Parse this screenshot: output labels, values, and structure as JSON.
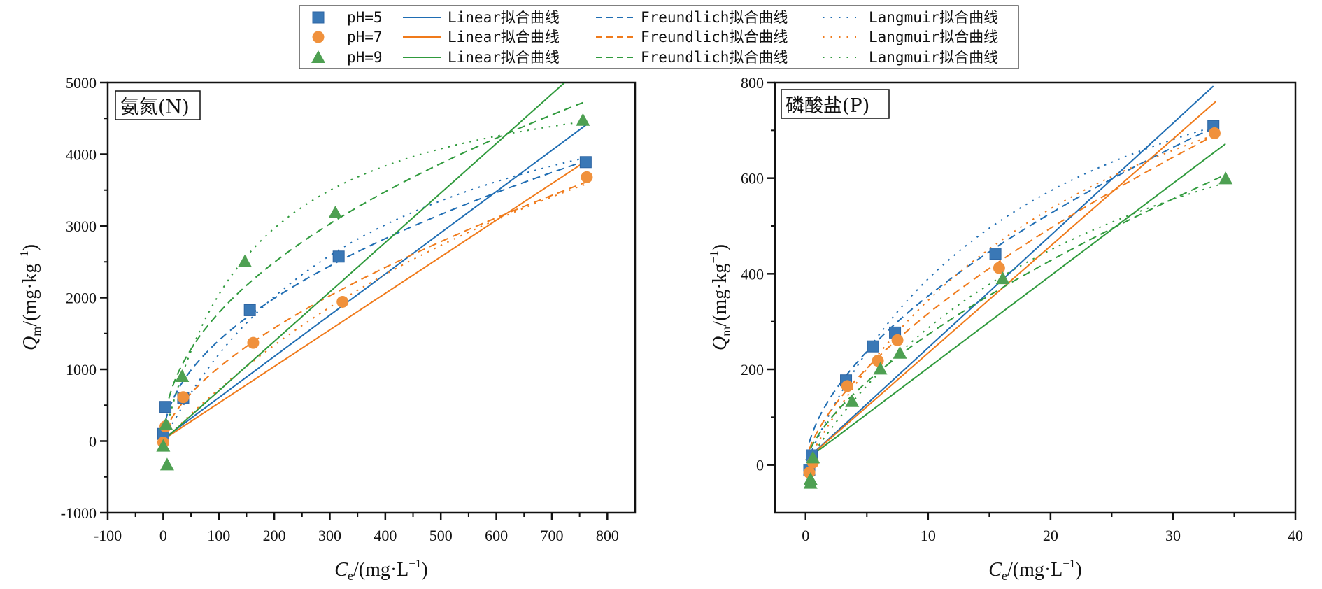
{
  "legend": {
    "placement": "top-center",
    "rows": [
      {
        "marker": "square",
        "label": "pH=5",
        "color": "#3a78b6",
        "line_color": "#1f6db3",
        "linear": "Linear拟合曲线",
        "freundlich": "Freundlich拟合曲线",
        "langmuir": "Langmuir拟合曲线"
      },
      {
        "marker": "circle",
        "label": "pH=7",
        "color": "#f0913c",
        "line_color": "#f07a1a",
        "linear": "Linear拟合曲线",
        "freundlich": "Freundlich拟合曲线",
        "langmuir": "Langmuir拟合曲线"
      },
      {
        "marker": "triangle",
        "label": "pH=9",
        "color": "#4ea052",
        "line_color": "#2f9a3c",
        "linear": "Linear拟合曲线",
        "freundlich": "Freundlich拟合曲线",
        "langmuir": "Langmuir拟合曲线"
      }
    ]
  },
  "chart_data": [
    {
      "type": "scatter",
      "title": "氨氮(N)",
      "xlabel_main": "C",
      "xlabel_sub": "e",
      "xlabel_unit": "/(mg·L",
      "xlabel_sup": "−1",
      "xlabel_close": ")",
      "ylabel_main": "Q",
      "ylabel_sub": "m",
      "ylabel_unit": "/(mg·kg",
      "ylabel_sup": "−1",
      "ylabel_close": ")",
      "xlim": [
        -100,
        850
      ],
      "ylim": [
        -1000,
        5000
      ],
      "xticks": [
        -100,
        0,
        100,
        200,
        300,
        400,
        500,
        600,
        700,
        800
      ],
      "xtick_labels": [
        "-100",
        "0",
        "100",
        "200",
        "300",
        "400",
        "500",
        "600",
        "700",
        "800"
      ],
      "yticks": [
        -1000,
        0,
        1000,
        2000,
        3000,
        4000,
        5000
      ],
      "ytick_labels": [
        "-1000",
        "0",
        "1000",
        "2000",
        "3000",
        "4000",
        "5000"
      ],
      "grid": false,
      "series": [
        {
          "name": "pH=5",
          "points": [
            [
              0,
              100
            ],
            [
              4,
              476
            ],
            [
              36,
              600
            ],
            [
              156,
              1825
            ],
            [
              316,
              2573
            ],
            [
              761,
              3890
            ]
          ],
          "linear": {
            "slope": 5.75,
            "intercept": 30,
            "x_end": 762
          },
          "freundlich": {
            "K": 137,
            "n": 0.505,
            "x_end": 762
          },
          "langmuir": {
            "Qm": 6020,
            "K": 0.00251,
            "x_end": 762
          }
        },
        {
          "name": "pH=7",
          "points": [
            [
              0,
              -20
            ],
            [
              4,
              204
            ],
            [
              36,
              612
            ],
            [
              162,
              1369
            ],
            [
              323,
              1942
            ],
            [
              763,
              3680
            ]
          ],
          "linear": {
            "slope": 5.1,
            "intercept": 20,
            "x_end": 765
          },
          "freundlich": {
            "K": 59,
            "n": 0.62,
            "x_end": 763
          },
          "langmuir": {
            "Qm": 8930,
            "K": 0.00088,
            "x_end": 763
          }
        },
        {
          "name": "pH=9",
          "points": [
            [
              0,
              -70
            ],
            [
              7,
              -330
            ],
            [
              5,
              233
            ],
            [
              34,
              903
            ],
            [
              147,
              2505
            ],
            [
              310,
              3185
            ],
            [
              756,
              4476
            ]
          ],
          "linear": {
            "slope": 6.9,
            "intercept": 10,
            "x_end": 723
          },
          "freundlich": {
            "K": 196,
            "n": 0.48,
            "x_end": 756
          },
          "langmuir": {
            "Qm": 5430,
            "K": 0.00602,
            "x_end": 756
          }
        }
      ]
    },
    {
      "type": "scatter",
      "title": "磷酸盐(P)",
      "xlabel_main": "C",
      "xlabel_sub": "e",
      "xlabel_unit": "/(mg·L",
      "xlabel_sup": "−1",
      "xlabel_close": ")",
      "ylabel_main": "Q",
      "ylabel_sub": "m",
      "ylabel_unit": "/(mg·kg",
      "ylabel_sup": "−1",
      "ylabel_close": ")",
      "xlim": [
        -2.5,
        40
      ],
      "ylim": [
        -100,
        800
      ],
      "xticks": [
        0,
        10,
        20,
        30,
        40
      ],
      "xtick_labels": [
        "0",
        "10",
        "20",
        "30",
        "40"
      ],
      "yticks": [
        0,
        200,
        400,
        600,
        800
      ],
      "ytick_labels": [
        "0",
        "200",
        "400",
        "600",
        "800"
      ],
      "grid": false,
      "series": [
        {
          "name": "pH=5",
          "points": [
            [
              0.3,
              -10
            ],
            [
              0.5,
              20
            ],
            [
              3.3,
              177
            ],
            [
              5.5,
              248
            ],
            [
              7.3,
              277
            ],
            [
              15.5,
              442
            ],
            [
              33.3,
              709
            ]
          ],
          "linear": {
            "slope": 23.5,
            "intercept": 10,
            "x_end": 33.3
          },
          "freundlich": {
            "K": 94,
            "n": 0.575,
            "x_end": 33.3
          },
          "langmuir": {
            "Qm": 1089,
            "K": 0.0556,
            "x_end": 33.3
          }
        },
        {
          "name": "pH=7",
          "points": [
            [
              0.3,
              -16
            ],
            [
              0.6,
              5
            ],
            [
              3.4,
              165
            ],
            [
              5.9,
              218
            ],
            [
              7.5,
              261
            ],
            [
              15.8,
              412
            ],
            [
              33.4,
              694
            ]
          ],
          "linear": {
            "slope": 22.4,
            "intercept": 10,
            "x_end": 33.5
          },
          "freundlich": {
            "K": 71.5,
            "n": 0.646,
            "x_end": 33.4
          },
          "langmuir": {
            "Qm": 1211,
            "K": 0.0397,
            "x_end": 33.4
          }
        },
        {
          "name": "pH=9",
          "points": [
            [
              0.4,
              -38
            ],
            [
              0.4,
              -30
            ],
            [
              0.6,
              15
            ],
            [
              3.8,
              133
            ],
            [
              6.1,
              201
            ],
            [
              7.7,
              234
            ],
            [
              16.1,
              390
            ],
            [
              34.3,
              599
            ]
          ],
          "linear": {
            "slope": 19.3,
            "intercept": 10,
            "x_end": 34.3
          },
          "freundlich": {
            "K": 61,
            "n": 0.65,
            "x_end": 34.3
          },
          "langmuir": {
            "Qm": 1048,
            "K": 0.0376,
            "x_end": 34.3
          }
        }
      ]
    }
  ]
}
